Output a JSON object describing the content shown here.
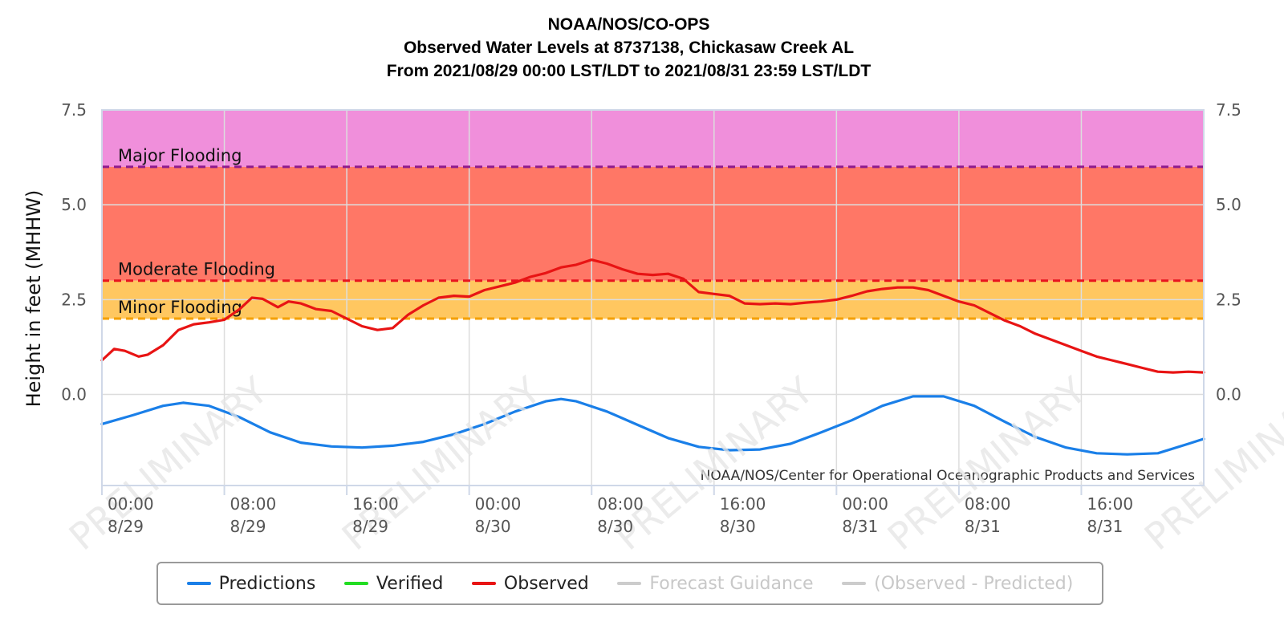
{
  "header": {
    "line1": "NOAA/NOS/CO-OPS",
    "line2": "Observed Water Levels at 8737138, Chickasaw Creek AL",
    "line3": "From 2021/08/29 00:00 LST/LDT to 2021/08/31 23:59 LST/LDT"
  },
  "colors": {
    "predictions": "#1a7fe8",
    "verified": "#22dd22",
    "observed": "#e81414",
    "disabled": "#cccccc",
    "major_band": "#f08fdb",
    "moderate_band": "#ff7766",
    "minor_band": "#ffc760",
    "major_line": "#8e1a8e",
    "moderate_line": "#e8141e",
    "minor_line": "#f5a000",
    "watermark": "#e4e4e4"
  },
  "chart_data": {
    "type": "line",
    "title": "Observed Water Levels at 8737138, Chickasaw Creek AL",
    "ylabel": "Height in feet (MHHW)",
    "ylim": [
      -2.4,
      7.5
    ],
    "xlim_hours": [
      0,
      72
    ],
    "yticks": [
      "7.5",
      "5.0",
      "2.5",
      "0.0"
    ],
    "ytick_values": [
      7.5,
      5.0,
      2.5,
      0.0
    ],
    "xticks": [
      {
        "hour": 0,
        "time": "00:00",
        "date": "8/29"
      },
      {
        "hour": 8,
        "time": "08:00",
        "date": "8/29"
      },
      {
        "hour": 16,
        "time": "16:00",
        "date": "8/29"
      },
      {
        "hour": 24,
        "time": "00:00",
        "date": "8/30"
      },
      {
        "hour": 32,
        "time": "08:00",
        "date": "8/30"
      },
      {
        "hour": 40,
        "time": "16:00",
        "date": "8/30"
      },
      {
        "hour": 48,
        "time": "00:00",
        "date": "8/31"
      },
      {
        "hour": 56,
        "time": "08:00",
        "date": "8/31"
      },
      {
        "hour": 64,
        "time": "16:00",
        "date": "8/31"
      }
    ],
    "thresholds": [
      {
        "name": "Major Flooding",
        "value": 6.0
      },
      {
        "name": "Moderate Flooding",
        "value": 3.0
      },
      {
        "name": "Minor Flooding",
        "value": 2.0
      }
    ],
    "credit": "NOAA/NOS/Center for Operational Oceanographic Products and Services",
    "watermark": "PRELIMINARY",
    "series": [
      {
        "name": "Predictions",
        "x": [
          0,
          2,
          4,
          5.3,
          7,
          9,
          11,
          13,
          15,
          17,
          19,
          21,
          23,
          25,
          27,
          29,
          30,
          31,
          33,
          35,
          37,
          39,
          41,
          43,
          45,
          47,
          49,
          51,
          53,
          55,
          57,
          59,
          61,
          63,
          65,
          67,
          69,
          71,
          72
        ],
        "values": [
          -0.78,
          -0.55,
          -0.3,
          -0.22,
          -0.3,
          -0.6,
          -1.0,
          -1.27,
          -1.37,
          -1.4,
          -1.35,
          -1.25,
          -1.05,
          -0.78,
          -0.45,
          -0.18,
          -0.12,
          -0.18,
          -0.45,
          -0.8,
          -1.15,
          -1.38,
          -1.47,
          -1.45,
          -1.3,
          -1.0,
          -0.68,
          -0.3,
          -0.05,
          -0.05,
          -0.3,
          -0.72,
          -1.12,
          -1.4,
          -1.55,
          -1.58,
          -1.55,
          -1.3,
          -1.17
        ]
      },
      {
        "name": "Observed",
        "x": [
          0,
          0.8,
          1.5,
          2.4,
          3,
          4,
          5,
          6,
          7,
          8,
          9,
          9.8,
          10.5,
          11.5,
          12.2,
          13,
          14,
          15,
          16,
          17,
          18,
          19,
          20,
          21,
          22,
          23,
          24,
          25,
          26,
          27,
          28,
          29,
          30,
          31,
          32,
          33,
          34,
          35,
          36,
          37,
          38,
          39,
          40,
          41,
          42,
          43,
          44,
          45,
          46,
          47,
          48,
          49,
          50,
          51,
          52,
          53,
          54,
          55,
          56,
          57,
          58,
          59,
          60,
          61,
          62,
          63,
          64,
          65,
          66,
          67,
          68,
          69,
          70,
          71,
          72
        ],
        "values": [
          0.9,
          1.2,
          1.15,
          1.0,
          1.05,
          1.3,
          1.7,
          1.85,
          1.9,
          1.97,
          2.25,
          2.55,
          2.52,
          2.3,
          2.45,
          2.4,
          2.25,
          2.2,
          2.0,
          1.8,
          1.7,
          1.75,
          2.1,
          2.35,
          2.55,
          2.6,
          2.58,
          2.75,
          2.85,
          2.95,
          3.1,
          3.2,
          3.35,
          3.42,
          3.55,
          3.45,
          3.3,
          3.18,
          3.15,
          3.18,
          3.05,
          2.7,
          2.65,
          2.6,
          2.4,
          2.38,
          2.4,
          2.38,
          2.42,
          2.45,
          2.5,
          2.6,
          2.72,
          2.78,
          2.82,
          2.82,
          2.75,
          2.6,
          2.45,
          2.35,
          2.15,
          1.95,
          1.8,
          1.6,
          1.45,
          1.3,
          1.15,
          1.0,
          0.9,
          0.8,
          0.7,
          0.6,
          0.58,
          0.6,
          0.58
        ]
      }
    ]
  },
  "legend": {
    "items": [
      {
        "label": "Predictions"
      },
      {
        "label": "Verified"
      },
      {
        "label": "Observed"
      },
      {
        "label": "Forecast Guidance"
      },
      {
        "label": "(Observed - Predicted)"
      }
    ]
  }
}
